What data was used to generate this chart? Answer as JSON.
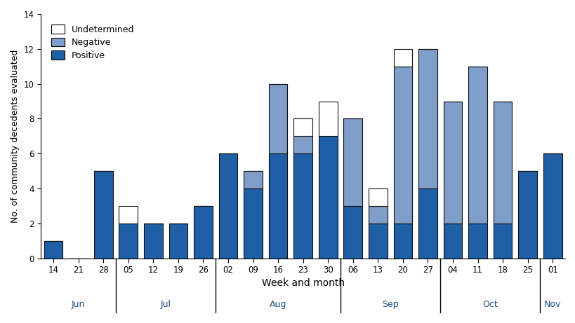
{
  "weeks": [
    "14",
    "21",
    "28",
    "05",
    "12",
    "19",
    "26",
    "02",
    "09",
    "16",
    "23",
    "30",
    "06",
    "13",
    "20",
    "27",
    "04",
    "11",
    "18",
    "25",
    "01"
  ],
  "positive": [
    1,
    0,
    5,
    2,
    2,
    2,
    3,
    6,
    4,
    6,
    6,
    7,
    3,
    2,
    2,
    4,
    2,
    2,
    2,
    5,
    6
  ],
  "negative": [
    0,
    0,
    0,
    0,
    0,
    0,
    0,
    0,
    1,
    4,
    1,
    0,
    5,
    1,
    9,
    8,
    7,
    9,
    7,
    0,
    0
  ],
  "undetermined": [
    0,
    0,
    0,
    1,
    0,
    0,
    0,
    0,
    0,
    0,
    1,
    2,
    0,
    1,
    1,
    0,
    0,
    0,
    0,
    0,
    0
  ],
  "positive_color": "#1f5fa6",
  "negative_color": "#7f9ec9",
  "undetermined_color": "#ffffff",
  "bar_edge_color": "#111111",
  "ylim": [
    0,
    14
  ],
  "yticks": [
    0,
    2,
    4,
    6,
    8,
    10,
    12,
    14
  ],
  "ylabel": "No. of community decedents evaluated",
  "xlabel": "Week and month",
  "month_data": [
    {
      "label": "Jun",
      "indices": [
        0,
        1,
        2
      ]
    },
    {
      "label": "Jul",
      "indices": [
        3,
        4,
        5,
        6
      ]
    },
    {
      "label": "Aug",
      "indices": [
        7,
        8,
        9,
        10,
        11
      ]
    },
    {
      "label": "Sep",
      "indices": [
        12,
        13,
        14,
        15
      ]
    },
    {
      "label": "Oct",
      "indices": [
        16,
        17,
        18,
        19
      ]
    },
    {
      "label": "Nov",
      "indices": [
        20
      ]
    }
  ],
  "separators": [
    2.5,
    6.5,
    11.5,
    15.5,
    19.5
  ],
  "legend_labels": [
    "Undetermined",
    "Negative",
    "Positive"
  ],
  "legend_colors": [
    "#ffffff",
    "#7f9ec9",
    "#1f5fa6"
  ]
}
